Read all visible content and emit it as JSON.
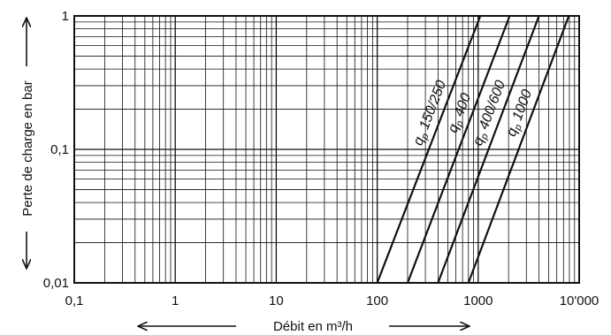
{
  "chart_data": {
    "type": "line",
    "x_scale": "log",
    "y_scale": "log",
    "xlim": [
      0.1,
      10000
    ],
    "ylim": [
      0.01,
      1
    ],
    "xlabel": "Débit en m³/h",
    "ylabel": "Perte de charge en bar",
    "x_tick_labels": [
      "0,1",
      "1",
      "10",
      "100",
      "1000",
      "10'000"
    ],
    "y_tick_labels": [
      "0,01",
      "0,1",
      "1"
    ],
    "grid": true,
    "legend": "none",
    "series": [
      {
        "name": "qp 150/250",
        "x": [
          100,
          1050
        ],
        "y": [
          0.01,
          1
        ]
      },
      {
        "name": "qp 400",
        "x": [
          200,
          2050
        ],
        "y": [
          0.01,
          1
        ]
      },
      {
        "name": "qp 400/600",
        "x": [
          400,
          4000
        ],
        "y": [
          0.01,
          1
        ]
      },
      {
        "name": "qp 1000",
        "x": [
          800,
          7900
        ],
        "y": [
          0.01,
          1
        ]
      }
    ],
    "series_labels": [
      {
        "prefix": "q",
        "sub": "p",
        "text": " 150/250"
      },
      {
        "prefix": "q",
        "sub": "p",
        "text": " 400"
      },
      {
        "prefix": "q",
        "sub": "p",
        "text": " 400/600"
      },
      {
        "prefix": "q",
        "sub": "p",
        "text": " 1000"
      }
    ]
  }
}
